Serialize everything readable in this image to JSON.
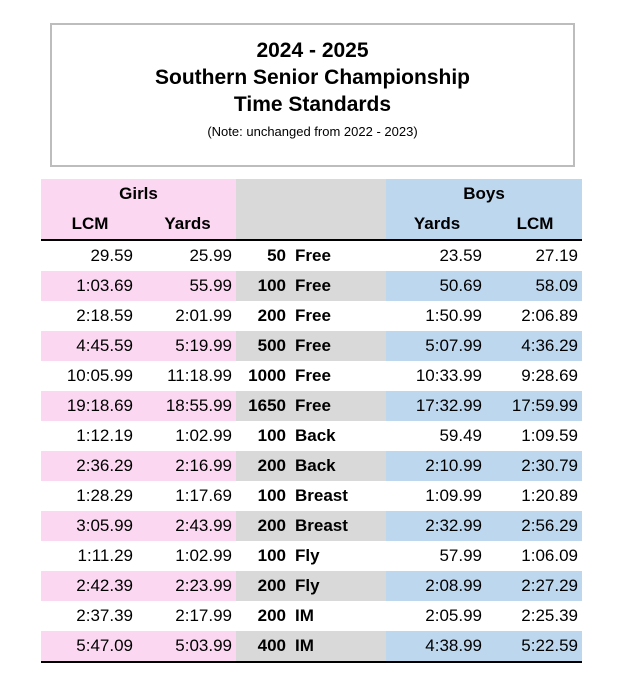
{
  "header": {
    "season": "2024 - 2025",
    "meet": "Southern Senior Championship",
    "subtitle": "Time Standards",
    "note": "(Note: unchanged from 2022 - 2023)"
  },
  "columns": {
    "girls": "Girls",
    "boys": "Boys",
    "girls_lcm": "LCM",
    "girls_yards": "Yards",
    "boys_yards": "Yards",
    "boys_lcm": "LCM"
  },
  "colors": {
    "girls_bg": "#fbd7f1",
    "boys_bg": "#bdd7ee",
    "event_bg": "#d9d9d9"
  },
  "rows": [
    {
      "girls_lcm": "29.59",
      "girls_yards": "25.99",
      "distance": "50",
      "stroke": "Free",
      "boys_yards": "23.59",
      "boys_lcm": "27.19"
    },
    {
      "girls_lcm": "1:03.69",
      "girls_yards": "55.99",
      "distance": "100",
      "stroke": "Free",
      "boys_yards": "50.69",
      "boys_lcm": "58.09"
    },
    {
      "girls_lcm": "2:18.59",
      "girls_yards": "2:01.99",
      "distance": "200",
      "stroke": "Free",
      "boys_yards": "1:50.99",
      "boys_lcm": "2:06.89"
    },
    {
      "girls_lcm": "4:45.59",
      "girls_yards": "5:19.99",
      "distance": "500",
      "stroke": "Free",
      "boys_yards": "5:07.99",
      "boys_lcm": "4:36.29"
    },
    {
      "girls_lcm": "10:05.99",
      "girls_yards": "11:18.99",
      "distance": "1000",
      "stroke": "Free",
      "boys_yards": "10:33.99",
      "boys_lcm": "9:28.69"
    },
    {
      "girls_lcm": "19:18.69",
      "girls_yards": "18:55.99",
      "distance": "1650",
      "stroke": "Free",
      "boys_yards": "17:32.99",
      "boys_lcm": "17:59.99"
    },
    {
      "girls_lcm": "1:12.19",
      "girls_yards": "1:02.99",
      "distance": "100",
      "stroke": "Back",
      "boys_yards": "59.49",
      "boys_lcm": "1:09.59"
    },
    {
      "girls_lcm": "2:36.29",
      "girls_yards": "2:16.99",
      "distance": "200",
      "stroke": "Back",
      "boys_yards": "2:10.99",
      "boys_lcm": "2:30.79"
    },
    {
      "girls_lcm": "1:28.29",
      "girls_yards": "1:17.69",
      "distance": "100",
      "stroke": "Breast",
      "boys_yards": "1:09.99",
      "boys_lcm": "1:20.89"
    },
    {
      "girls_lcm": "3:05.99",
      "girls_yards": "2:43.99",
      "distance": "200",
      "stroke": "Breast",
      "boys_yards": "2:32.99",
      "boys_lcm": "2:56.29"
    },
    {
      "girls_lcm": "1:11.29",
      "girls_yards": "1:02.99",
      "distance": "100",
      "stroke": "Fly",
      "boys_yards": "57.99",
      "boys_lcm": "1:06.09"
    },
    {
      "girls_lcm": "2:42.39",
      "girls_yards": "2:23.99",
      "distance": "200",
      "stroke": "Fly",
      "boys_yards": "2:08.99",
      "boys_lcm": "2:27.29"
    },
    {
      "girls_lcm": "2:37.39",
      "girls_yards": "2:17.99",
      "distance": "200",
      "stroke": "IM",
      "boys_yards": "2:05.99",
      "boys_lcm": "2:25.39"
    },
    {
      "girls_lcm": "5:47.09",
      "girls_yards": "5:03.99",
      "distance": "400",
      "stroke": "IM",
      "boys_yards": "4:38.99",
      "boys_lcm": "5:22.59"
    }
  ]
}
